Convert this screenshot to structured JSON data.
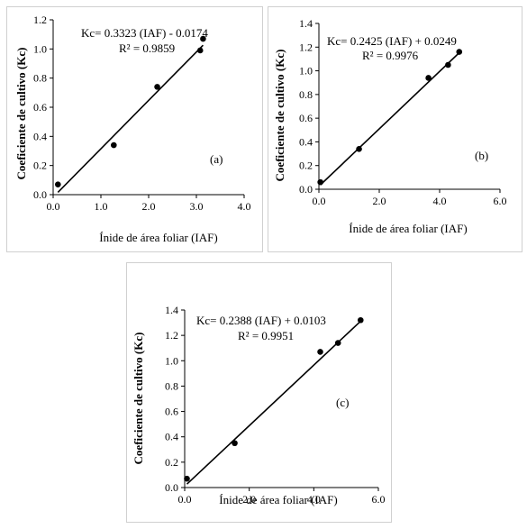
{
  "chart_data": [
    {
      "id": "a",
      "type": "scatter",
      "xlabel": "Ínide de área foliar (IAF)",
      "ylabel": "Coeficiente de cultivo (Kc)",
      "xlim": [
        0,
        4
      ],
      "ylim": [
        0,
        1.2
      ],
      "x_ticks": [
        "0.0",
        "1.0",
        "2.0",
        "3.0",
        "4.0"
      ],
      "y_ticks": [
        "0.0",
        "0.2",
        "0.4",
        "0.6",
        "0.8",
        "1.0",
        "1.2"
      ],
      "points": [
        {
          "x": 0.1,
          "y": 0.07
        },
        {
          "x": 1.27,
          "y": 0.34
        },
        {
          "x": 2.18,
          "y": 0.74
        },
        {
          "x": 3.08,
          "y": 0.99
        },
        {
          "x": 3.14,
          "y": 1.07
        }
      ],
      "trendline": {
        "slope": 0.3323,
        "intercept": -0.0174,
        "x_range": [
          0.1,
          3.14
        ]
      },
      "equation": "Kc= 0.3323 (IAF) - 0.0174",
      "r2": "R² = 0.9859",
      "panel_label": "(a)",
      "grid": false,
      "legend": "none"
    },
    {
      "id": "b",
      "type": "scatter",
      "xlabel": "Ínide de área foliar (IAF)",
      "ylabel": "Coeficiente de cultivo (Kc)",
      "xlim": [
        0,
        6
      ],
      "ylim": [
        0,
        1.4
      ],
      "x_ticks": [
        "0.0",
        "2.0",
        "4.0",
        "6.0"
      ],
      "y_ticks": [
        "0.0",
        "0.2",
        "0.4",
        "0.6",
        "0.8",
        "1.0",
        "1.2",
        "1.4"
      ],
      "points": [
        {
          "x": 0.05,
          "y": 0.06
        },
        {
          "x": 1.33,
          "y": 0.34
        },
        {
          "x": 3.63,
          "y": 0.94
        },
        {
          "x": 4.28,
          "y": 1.05
        },
        {
          "x": 4.65,
          "y": 1.16
        }
      ],
      "trendline": {
        "slope": 0.2425,
        "intercept": 0.0249,
        "x_range": [
          0.05,
          4.65
        ]
      },
      "equation": "Kc= 0.2425 (IAF) + 0.0249",
      "r2": "R² = 0.9976",
      "panel_label": "(b)",
      "grid": false,
      "legend": "none"
    },
    {
      "id": "c",
      "type": "scatter",
      "xlabel": "Ínide de área foliar (IAF)",
      "ylabel": "Coeficiente de cultivo (Kc)",
      "xlim": [
        0,
        6
      ],
      "ylim": [
        0,
        1.4
      ],
      "x_ticks": [
        "0.0",
        "2.0",
        "4.0",
        "6.0"
      ],
      "y_ticks": [
        "0.0",
        "0.2",
        "0.4",
        "0.6",
        "0.8",
        "1.0",
        "1.2",
        "1.4"
      ],
      "points": [
        {
          "x": 0.07,
          "y": 0.07
        },
        {
          "x": 1.55,
          "y": 0.35
        },
        {
          "x": 4.2,
          "y": 1.07
        },
        {
          "x": 4.75,
          "y": 1.14
        },
        {
          "x": 5.45,
          "y": 1.32
        }
      ],
      "trendline": {
        "slope": 0.2388,
        "intercept": 0.0103,
        "x_range": [
          0.07,
          5.45
        ]
      },
      "equation": "Kc=  0.2388 (IAF) + 0.0103",
      "r2": "R² = 0.9951",
      "panel_label": "(c)",
      "grid": false,
      "legend": "none"
    }
  ]
}
